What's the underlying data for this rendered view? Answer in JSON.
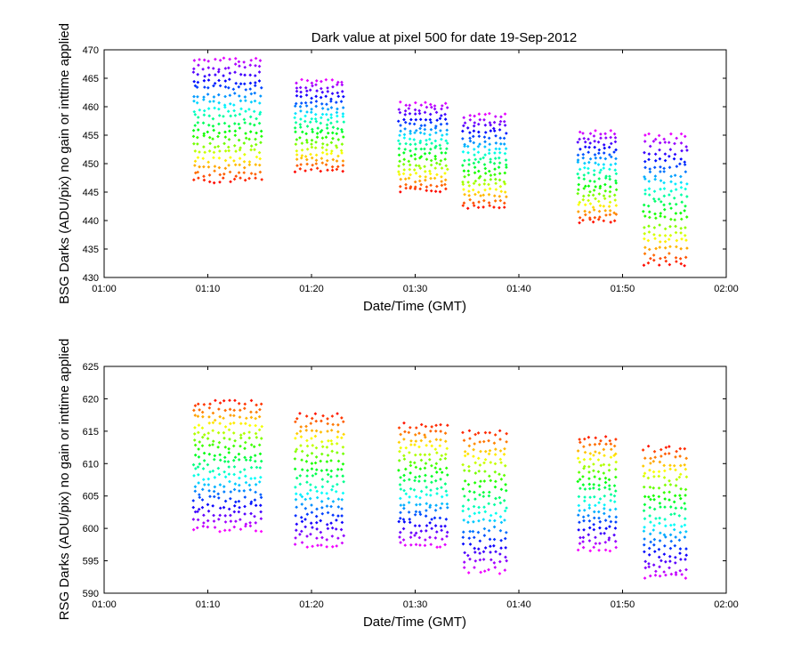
{
  "chart_data": [
    {
      "type": "scatter",
      "title": "Dark value at pixel 500 for date 19-Sep-2012",
      "xlabel": "Date/Time (GMT)",
      "ylabel": "BSG Darks (ADU/pix) no gain or inttime applied",
      "xlim_minutes": [
        60,
        120
      ],
      "ylim": [
        430,
        470
      ],
      "xticks": [
        60,
        70,
        80,
        90,
        100,
        110,
        120
      ],
      "xtick_labels": [
        "01:00",
        "01:10",
        "01:20",
        "01:30",
        "01:40",
        "01:50",
        "02:00"
      ],
      "yticks": [
        430,
        435,
        440,
        445,
        450,
        455,
        460,
        465,
        470
      ],
      "ytick_labels": [
        "430",
        "435",
        "440",
        "445",
        "450",
        "455",
        "460",
        "465",
        "470"
      ],
      "color_order": "red-to-magenta, red at bottom",
      "clusters": [
        {
          "x_minutes": [
            68.7,
            69.1,
            69.6,
            70.1,
            70.6,
            71.1,
            71.6,
            72.1,
            72.6,
            73.1,
            73.6,
            74.1,
            74.6,
            75.1
          ],
          "ymin": 446.5,
          "ymax": 469
        },
        {
          "x_minutes": [
            78.5,
            79.0,
            79.5,
            80.0,
            80.5,
            81.0,
            81.5,
            82.0,
            82.5,
            83.0
          ],
          "ymin": 448.5,
          "ymax": 465
        },
        {
          "x_minutes": [
            88.5,
            89.0,
            89.5,
            90.0,
            90.5,
            91.0,
            91.5,
            92.0,
            92.5,
            93.0
          ],
          "ymin": 445,
          "ymax": 461
        },
        {
          "x_minutes": [
            94.7,
            95.2,
            95.7,
            96.2,
            96.7,
            97.2,
            97.7,
            98.2,
            98.7
          ],
          "ymin": 442,
          "ymax": 459
        },
        {
          "x_minutes": [
            105.8,
            106.3,
            106.8,
            107.3,
            107.8,
            108.3,
            108.8,
            109.3
          ],
          "ymin": 439.5,
          "ymax": 456
        },
        {
          "x_minutes": [
            112.1,
            112.6,
            113.1,
            113.6,
            114.1,
            114.6,
            115.1,
            115.6,
            116.1
          ],
          "ymin": 432,
          "ymax": 455.5
        }
      ]
    },
    {
      "type": "scatter",
      "title": "",
      "xlabel": "Date/Time (GMT)",
      "ylabel": "RSG Darks (ADU/pix) no gain or inttime applied",
      "xlim_minutes": [
        60,
        120
      ],
      "ylim": [
        590,
        625
      ],
      "xticks": [
        60,
        70,
        80,
        90,
        100,
        110,
        120
      ],
      "xtick_labels": [
        "01:00",
        "01:10",
        "01:20",
        "01:30",
        "01:40",
        "01:50",
        "02:00"
      ],
      "yticks": [
        590,
        595,
        600,
        605,
        610,
        615,
        620,
        625
      ],
      "ytick_labels": [
        "590",
        "595",
        "600",
        "605",
        "610",
        "615",
        "620",
        "625"
      ],
      "color_order": "magenta-to-red, red at top",
      "clusters": [
        {
          "x_minutes": [
            68.7,
            69.1,
            69.6,
            70.1,
            70.6,
            71.1,
            71.6,
            72.1,
            72.6,
            73.1,
            73.6,
            74.1,
            74.6,
            75.1
          ],
          "ymin": 599.5,
          "ymax": 620
        },
        {
          "x_minutes": [
            78.5,
            79.0,
            79.5,
            80.0,
            80.5,
            81.0,
            81.5,
            82.0,
            82.5,
            83.0
          ],
          "ymin": 597,
          "ymax": 618
        },
        {
          "x_minutes": [
            88.5,
            89.0,
            89.5,
            90.0,
            90.5,
            91.0,
            91.5,
            92.0,
            92.5,
            93.0
          ],
          "ymin": 597,
          "ymax": 616.5
        },
        {
          "x_minutes": [
            94.7,
            95.2,
            95.7,
            96.2,
            96.7,
            97.2,
            97.7,
            98.2,
            98.7
          ],
          "ymin": 593,
          "ymax": 615.5
        },
        {
          "x_minutes": [
            105.8,
            106.3,
            106.8,
            107.3,
            107.8,
            108.3,
            108.8,
            109.3
          ],
          "ymin": 596.5,
          "ymax": 614.5
        },
        {
          "x_minutes": [
            112.1,
            112.6,
            113.1,
            113.6,
            114.1,
            114.6,
            115.1,
            115.6,
            116.1
          ],
          "ymin": 592,
          "ymax": 613
        }
      ]
    }
  ]
}
